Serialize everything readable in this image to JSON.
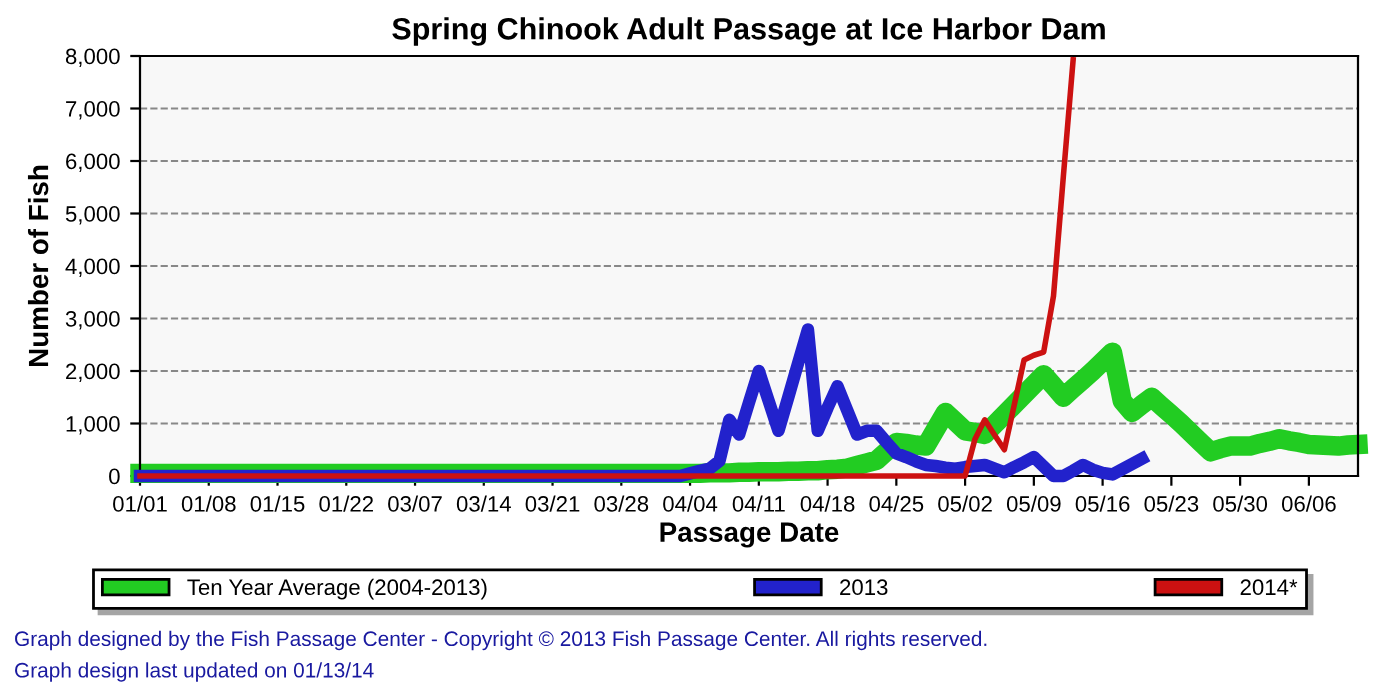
{
  "chart_data": {
    "type": "line",
    "title": "Spring Chinook Adult Passage at Ice Harbor Dam",
    "xlabel": "Passage Date",
    "ylabel": "Number of Fish",
    "annotations": [
      "Graph designed by the Fish Passage Center - Copyright © 2013 Fish Passage Center. All rights reserved.",
      "Graph design last updated on 01/13/14"
    ],
    "categories": [
      "01/01",
      null,
      null,
      null,
      null,
      null,
      null,
      "01/08",
      null,
      null,
      null,
      null,
      null,
      null,
      "01/15",
      null,
      null,
      null,
      null,
      null,
      null,
      "01/22",
      null,
      null,
      null,
      null,
      null,
      null,
      "03/07",
      null,
      null,
      null,
      null,
      null,
      null,
      "03/14",
      null,
      null,
      null,
      null,
      null,
      null,
      "03/21",
      null,
      null,
      null,
      null,
      null,
      null,
      "03/28",
      null,
      null,
      null,
      null,
      null,
      null,
      "04/04",
      null,
      null,
      null,
      null,
      null,
      null,
      "04/11",
      null,
      null,
      null,
      null,
      null,
      null,
      "04/18",
      null,
      null,
      null,
      null,
      null,
      null,
      "04/25",
      null,
      null,
      null,
      null,
      null,
      null,
      "05/02",
      null,
      null,
      null,
      null,
      null,
      null,
      "05/09",
      null,
      null,
      null,
      null,
      null,
      null,
      "05/16",
      null,
      null,
      null,
      null,
      null,
      null,
      "05/23",
      null,
      null,
      null,
      null,
      null,
      null,
      "05/30",
      null,
      null,
      null,
      null,
      null,
      null,
      "06/06",
      null,
      null,
      null,
      null,
      null
    ],
    "ylim": [
      0,
      8000
    ],
    "yticks": [
      0,
      {
        "value": 1000,
        "label": "1,000"
      },
      {
        "value": 2000,
        "label": "2,000"
      },
      {
        "value": 3000,
        "label": "3,000"
      },
      {
        "value": 4000,
        "label": "4,000"
      },
      {
        "value": 5000,
        "label": "5,000"
      },
      {
        "value": 6000,
        "label": "6,000"
      },
      {
        "value": 7000,
        "label": "7,000"
      },
      {
        "value": 8000,
        "label": "8,000"
      }
    ],
    "grid": "y",
    "legend": "bottom",
    "marker": "none",
    "line_style": "solid",
    "series": [
      {
        "name": "Ten Year Average (2004-2013)",
        "color": "#22cc22",
        "values": [
          50,
          50,
          50,
          50,
          50,
          50,
          50,
          50,
          50,
          50,
          50,
          50,
          50,
          50,
          50,
          50,
          50,
          50,
          50,
          50,
          50,
          50,
          50,
          50,
          50,
          50,
          50,
          50,
          50,
          50,
          50,
          50,
          50,
          50,
          50,
          50,
          50,
          50,
          50,
          50,
          50,
          50,
          50,
          50,
          50,
          50,
          50,
          50,
          50,
          50,
          50,
          50,
          50,
          50,
          50,
          50,
          50,
          50,
          60,
          60,
          60,
          70,
          70,
          80,
          80,
          80,
          90,
          90,
          100,
          100,
          120,
          130,
          150,
          200,
          250,
          300,
          470,
          640,
          620,
          590,
          570,
          890,
          1210,
          1040,
          860,
          830,
          790,
          980,
          1170,
          1360,
          1550,
          1740,
          1930,
          1720,
          1500,
          1670,
          1830,
          2000,
          2180,
          2360,
          1430,
          1210,
          1360,
          1500,
          1330,
          1170,
          1000,
          820,
          640,
          460,
          520,
          570,
          570,
          570,
          620,
          660,
          710,
          670,
          640,
          600,
          590,
          580,
          570,
          590,
          600
        ]
      },
      {
        "name": "2013",
        "color": "#2222cc",
        "values": [
          0,
          0,
          0,
          0,
          0,
          0,
          0,
          0,
          0,
          0,
          0,
          0,
          0,
          0,
          0,
          0,
          0,
          0,
          0,
          0,
          0,
          0,
          0,
          0,
          0,
          0,
          0,
          0,
          0,
          0,
          0,
          0,
          0,
          0,
          0,
          0,
          0,
          0,
          0,
          0,
          0,
          0,
          0,
          0,
          0,
          0,
          0,
          0,
          0,
          0,
          0,
          0,
          0,
          0,
          0,
          0,
          50,
          100,
          140,
          290,
          1070,
          790,
          1400,
          2000,
          1430,
          860,
          1500,
          2150,
          2790,
          860,
          1300,
          1710,
          1250,
          790,
          860,
          860,
          640,
          430,
          360,
          280,
          210,
          190,
          160,
          140,
          170,
          190,
          210,
          140,
          70,
          170,
          260,
          360,
          180,
          0,
          0,
          100,
          210,
          120,
          60,
          30,
          130,
          230,
          330,
          null,
          null,
          null,
          null,
          null,
          null,
          null,
          null,
          null,
          null,
          null,
          null,
          null,
          null,
          null,
          null,
          null,
          null,
          null,
          null,
          null,
          null
        ]
      },
      {
        "name": "2014*",
        "color": "#cc1111",
        "values": [
          0,
          0,
          0,
          0,
          0,
          0,
          0,
          0,
          0,
          0,
          0,
          0,
          0,
          0,
          0,
          0,
          0,
          0,
          0,
          0,
          0,
          0,
          0,
          0,
          0,
          0,
          0,
          0,
          0,
          0,
          0,
          0,
          0,
          0,
          0,
          0,
          0,
          0,
          0,
          0,
          0,
          0,
          0,
          0,
          0,
          0,
          0,
          0,
          0,
          0,
          0,
          0,
          0,
          0,
          0,
          0,
          0,
          0,
          0,
          0,
          0,
          0,
          0,
          0,
          0,
          0,
          0,
          0,
          0,
          0,
          0,
          0,
          0,
          0,
          0,
          0,
          0,
          0,
          0,
          0,
          0,
          0,
          0,
          0,
          0,
          700,
          1070,
          780,
          500,
          1350,
          2210,
          2300,
          2360,
          3430,
          5700,
          7930,
          null,
          null,
          null,
          null,
          null,
          null,
          null,
          null,
          null,
          null,
          null,
          null,
          null,
          null,
          null,
          null,
          null,
          null,
          null,
          null,
          null,
          null,
          null,
          null,
          null,
          null,
          null,
          null,
          null
        ]
      }
    ]
  }
}
